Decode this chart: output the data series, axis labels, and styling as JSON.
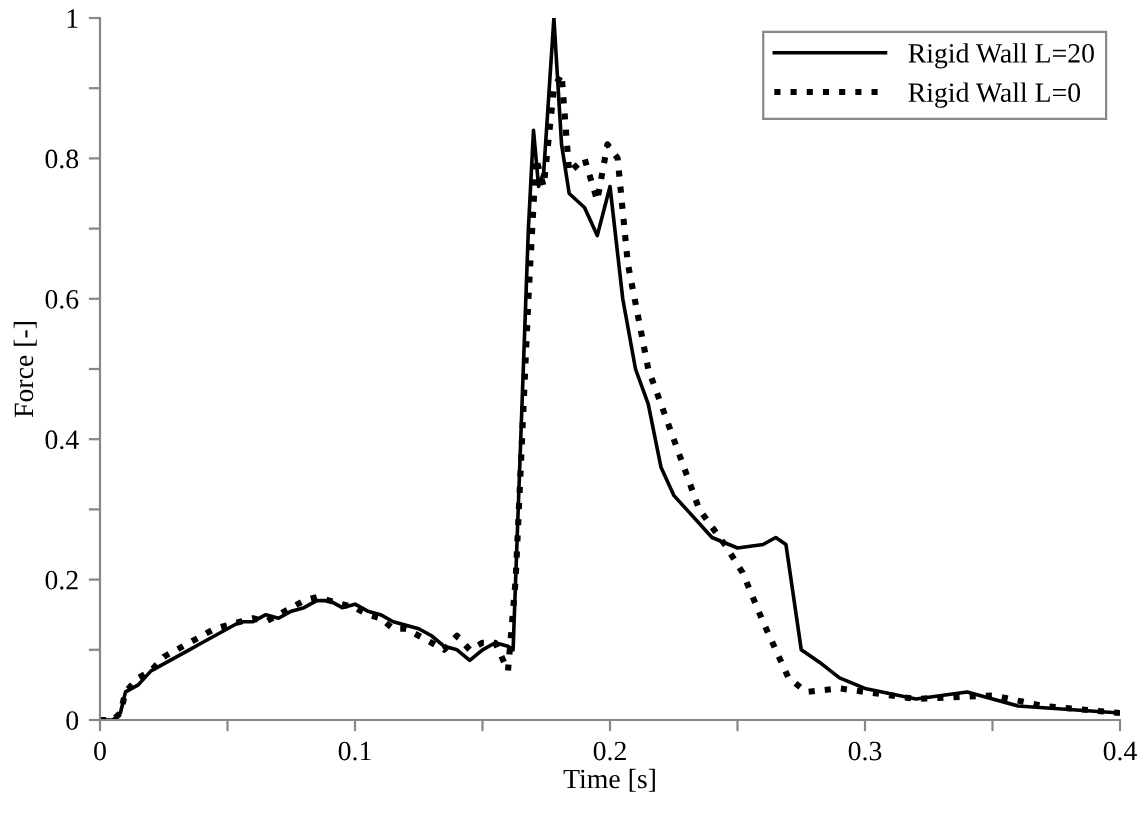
{
  "chart_data": {
    "type": "line",
    "xlabel": "Time [s]",
    "ylabel": "Force [-]",
    "xlim": [
      0,
      0.4
    ],
    "xticks": [
      0,
      {
        "value": 0.05,
        "label": null
      },
      0.1,
      {
        "value": 0.15,
        "label": null
      },
      0.2,
      {
        "value": 0.25,
        "label": null
      },
      0.3,
      {
        "value": 0.35,
        "label": null
      },
      0.4
    ],
    "ylim": [
      0,
      1
    ],
    "yticks": [
      0,
      {
        "value": 0.1,
        "label": null
      },
      0.2,
      {
        "value": 0.3,
        "label": null
      },
      0.4,
      {
        "value": 0.5,
        "label": null
      },
      0.6,
      {
        "value": 0.7,
        "label": null
      },
      0.8,
      {
        "value": 0.9,
        "label": null
      },
      1
    ],
    "grid": false,
    "legend": "top right",
    "marker": "none",
    "series": [
      {
        "name": "Rigid Wall L=20",
        "color": "#000000",
        "line_style": "solid",
        "x": [
          0,
          0.005,
          0.008,
          0.01,
          0.015,
          0.02,
          0.025,
          0.03,
          0.035,
          0.04,
          0.045,
          0.05,
          0.055,
          0.06,
          0.065,
          0.07,
          0.075,
          0.08,
          0.085,
          0.09,
          0.095,
          0.1,
          0.105,
          0.11,
          0.115,
          0.12,
          0.125,
          0.13,
          0.135,
          0.14,
          0.145,
          0.15,
          0.155,
          0.16,
          0.162,
          0.165,
          0.168,
          0.17,
          0.172,
          0.174,
          0.178,
          0.181,
          0.184,
          0.19,
          0.195,
          0.2,
          0.205,
          0.21,
          0.215,
          0.22,
          0.225,
          0.23,
          0.24,
          0.25,
          0.26,
          0.265,
          0.269,
          0.275,
          0.283,
          0.29,
          0.3,
          0.32,
          0.34,
          0.36,
          0.4
        ],
        "values": [
          0,
          0,
          0.01,
          0.04,
          0.05,
          0.07,
          0.08,
          0.09,
          0.1,
          0.11,
          0.12,
          0.13,
          0.14,
          0.14,
          0.15,
          0.145,
          0.155,
          0.16,
          0.17,
          0.17,
          0.16,
          0.165,
          0.155,
          0.15,
          0.14,
          0.135,
          0.13,
          0.12,
          0.105,
          0.1,
          0.085,
          0.1,
          0.11,
          0.105,
          0.1,
          0.4,
          0.7,
          0.84,
          0.76,
          0.78,
          1.0,
          0.82,
          0.75,
          0.73,
          0.69,
          0.76,
          0.6,
          0.5,
          0.45,
          0.36,
          0.32,
          0.3,
          0.26,
          0.245,
          0.25,
          0.26,
          0.25,
          0.1,
          0.08,
          0.06,
          0.045,
          0.03,
          0.04,
          0.02,
          0.01
        ]
      },
      {
        "name": "Rigid Wall L=0",
        "color": "#000000",
        "line_style": "dotted",
        "x": [
          0,
          0.005,
          0.008,
          0.01,
          0.015,
          0.02,
          0.025,
          0.03,
          0.035,
          0.04,
          0.045,
          0.05,
          0.055,
          0.06,
          0.065,
          0.07,
          0.075,
          0.08,
          0.085,
          0.09,
          0.095,
          0.1,
          0.105,
          0.11,
          0.115,
          0.12,
          0.125,
          0.13,
          0.135,
          0.14,
          0.145,
          0.15,
          0.155,
          0.16,
          0.163,
          0.168,
          0.171,
          0.174,
          0.178,
          0.181,
          0.184,
          0.19,
          0.195,
          0.199,
          0.203,
          0.207,
          0.215,
          0.225,
          0.235,
          0.245,
          0.252,
          0.26,
          0.27,
          0.277,
          0.29,
          0.3,
          0.32,
          0.35,
          0.37,
          0.4
        ],
        "values": [
          0,
          0,
          0.01,
          0.04,
          0.06,
          0.07,
          0.09,
          0.1,
          0.11,
          0.12,
          0.13,
          0.135,
          0.14,
          0.145,
          0.14,
          0.15,
          0.16,
          0.17,
          0.175,
          0.17,
          0.165,
          0.16,
          0.15,
          0.145,
          0.13,
          0.13,
          0.12,
          0.11,
          0.1,
          0.12,
          0.1,
          0.11,
          0.11,
          0.07,
          0.2,
          0.6,
          0.8,
          0.76,
          0.9,
          0.92,
          0.78,
          0.8,
          0.74,
          0.82,
          0.8,
          0.65,
          0.5,
          0.4,
          0.3,
          0.25,
          0.21,
          0.14,
          0.06,
          0.04,
          0.045,
          0.04,
          0.03,
          0.035,
          0.02,
          0.01
        ]
      }
    ]
  }
}
